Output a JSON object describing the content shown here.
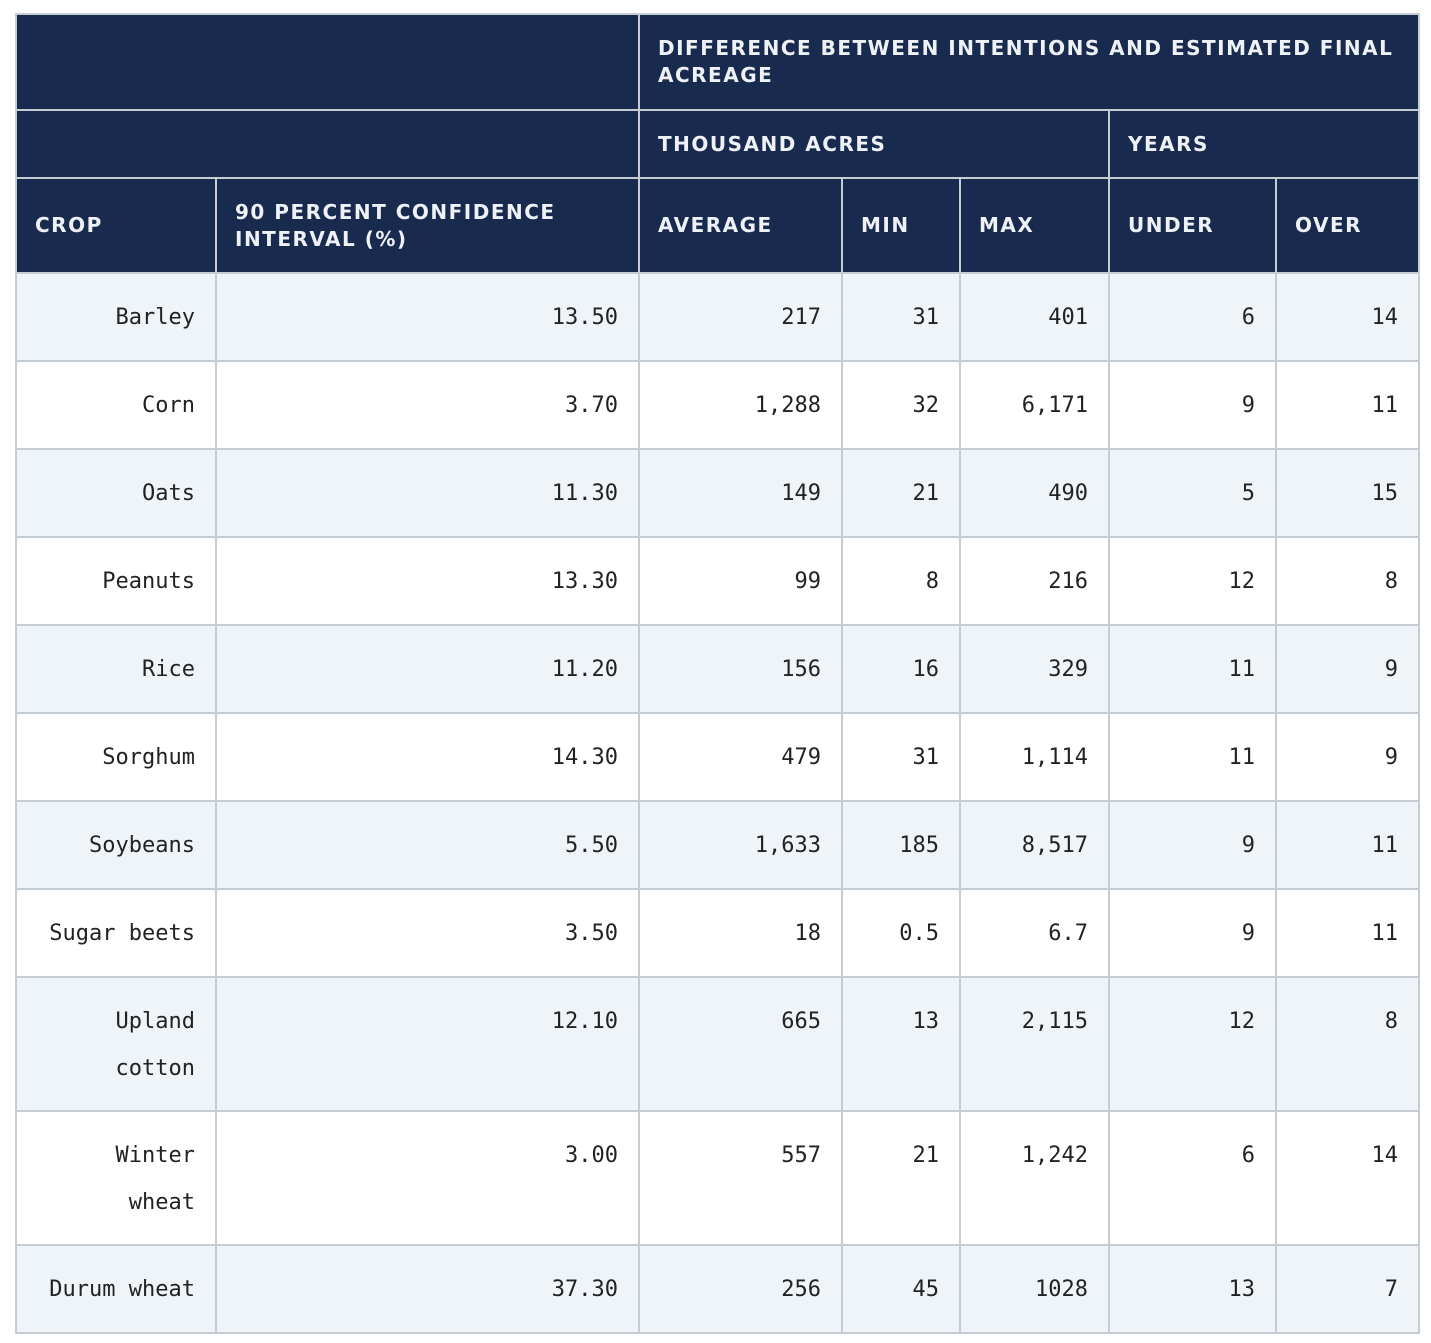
{
  "header": {
    "group_title": "DIFFERENCE BETWEEN INTENTIONS AND ESTIMATED FINAL ACREAGE",
    "subgroup_acres": "THOUSAND ACRES",
    "subgroup_years": "YEARS",
    "columns": {
      "crop": "CROP",
      "ci": "90 PERCENT CONFIDENCE INTERVAL (%)",
      "average": "AVERAGE",
      "min": "MIN",
      "max": "MAX",
      "under": "UNDER",
      "over": "OVER"
    }
  },
  "rows": [
    {
      "crop": "Barley",
      "ci": "13.50",
      "average": "217",
      "min": "31",
      "max": "401",
      "under": "6",
      "over": "14"
    },
    {
      "crop": "Corn",
      "ci": "3.70",
      "average": "1,288",
      "min": "32",
      "max": "6,171",
      "under": "9",
      "over": "11"
    },
    {
      "crop": "Oats",
      "ci": "11.30",
      "average": "149",
      "min": "21",
      "max": "490",
      "under": "5",
      "over": "15"
    },
    {
      "crop": "Peanuts",
      "ci": "13.30",
      "average": "99",
      "min": "8",
      "max": "216",
      "under": "12",
      "over": "8"
    },
    {
      "crop": "Rice",
      "ci": "11.20",
      "average": "156",
      "min": "16",
      "max": "329",
      "under": "11",
      "over": "9"
    },
    {
      "crop": "Sorghum",
      "ci": "14.30",
      "average": "479",
      "min": "31",
      "max": "1,114",
      "under": "11",
      "over": "9"
    },
    {
      "crop": "Soybeans",
      "ci": "5.50",
      "average": "1,633",
      "min": "185",
      "max": "8,517",
      "under": "9",
      "over": "11"
    },
    {
      "crop": "Sugar beets",
      "ci": "3.50",
      "average": "18",
      "min": "0.5",
      "max": "6.7",
      "under": "9",
      "over": "11"
    },
    {
      "crop": "Upland cotton",
      "ci": "12.10",
      "average": "665",
      "min": "13",
      "max": "2,115",
      "under": "12",
      "over": "8"
    },
    {
      "crop": "Winter wheat",
      "ci": "3.00",
      "average": "557",
      "min": "21",
      "max": "1,242",
      "under": "6",
      "over": "14"
    },
    {
      "crop": "Durum wheat",
      "ci": "37.30",
      "average": "256",
      "min": "45",
      "max": "1028",
      "under": "13",
      "over": "7"
    }
  ],
  "colors": {
    "header_bg": "#182a4d",
    "header_text": "#eef1f6",
    "row_shade": "#eff4f8",
    "border": "#c5ccd3"
  }
}
